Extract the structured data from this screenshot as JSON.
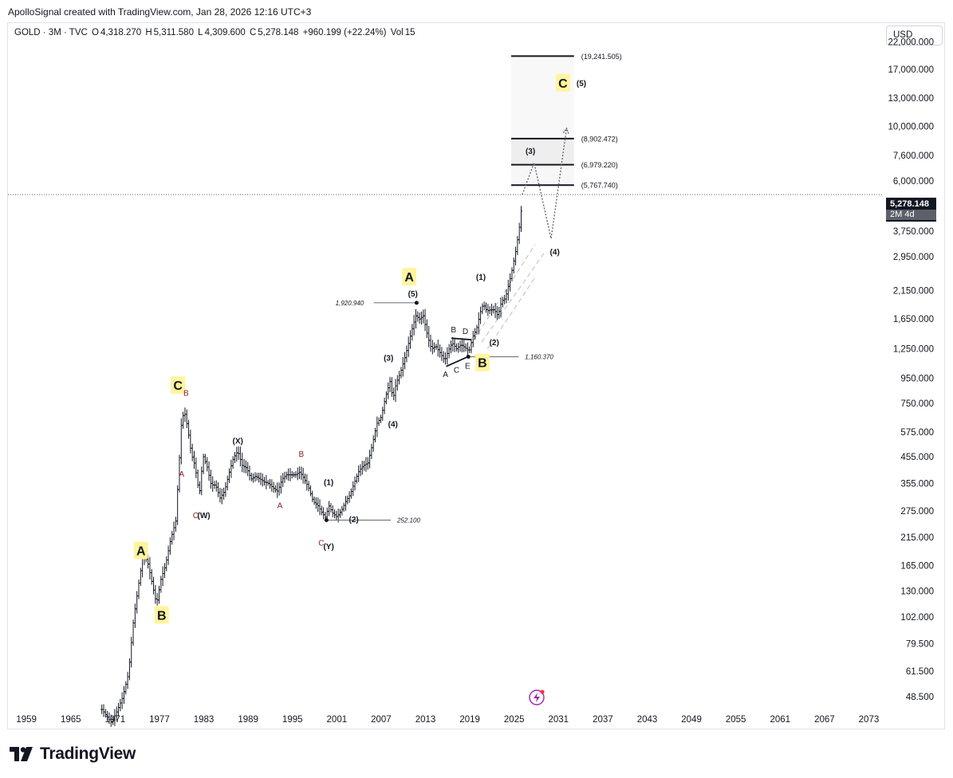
{
  "header": {
    "attribution": "ApolloSignal created with TradingView.com, Jan 28, 2026 12:16 UTC+3"
  },
  "legend": {
    "symbol": "GOLD · 3M · TVC",
    "open_label": "O",
    "open": "4,318.270",
    "high_label": "H",
    "high": "5,311.580",
    "low_label": "L",
    "low": "4,309.600",
    "close_label": "C",
    "close": "5,278.148",
    "change": "+960.199 (+22.24%)",
    "volume_label": "Vol",
    "volume": "15"
  },
  "currency_button": "USD",
  "last_price": {
    "value": "5,278.148",
    "countdown": "2M 4d"
  },
  "footer": {
    "brand": "TradingView"
  },
  "colors": {
    "candle": "#131722",
    "wave_label_bg": "#fff59d",
    "sub_label": "#8b1a1a",
    "grid_text": "#131722",
    "target_box": "#f5f5f5"
  },
  "chart_data": {
    "type": "bar",
    "title": "",
    "symbol": "GOLD",
    "interval": "3M",
    "y_scale": "log",
    "ylim": [
      43,
      26000
    ],
    "xlim": [
      1956.5,
      2075
    ],
    "x_ticks": [
      "1959",
      "1965",
      "1971",
      "1977",
      "1983",
      "1989",
      "1995",
      "2001",
      "2007",
      "2013",
      "2019",
      "2025",
      "2031",
      "2037",
      "2043",
      "2049",
      "2055",
      "2061",
      "2067",
      "2073"
    ],
    "y_ticks": [
      "22,000.000",
      "17,000.000",
      "13,000.000",
      "10,000.000",
      "7,600.000",
      "6,000.000",
      "3,750.000",
      "2,950.000",
      "2,150.000",
      "1,650.000",
      "1,250.000",
      "950.000",
      "750.000",
      "575.000",
      "455.000",
      "355.000",
      "275.000",
      "215.000",
      "165.000",
      "130.000",
      "102.000",
      "79.500",
      "61.500",
      "48.500"
    ],
    "price_path": [
      [
        1969.2,
        43
      ],
      [
        1970.5,
        38
      ],
      [
        1971.2,
        42
      ],
      [
        1972.0,
        48
      ],
      [
        1972.8,
        60
      ],
      [
        1973.5,
        100
      ],
      [
        1974.2,
        140
      ],
      [
        1974.8,
        185
      ],
      [
        1975.4,
        170
      ],
      [
        1976.0,
        140
      ],
      [
        1976.6,
        115
      ],
      [
        1977.2,
        145
      ],
      [
        1977.8,
        165
      ],
      [
        1978.5,
        210
      ],
      [
        1979.2,
        250
      ],
      [
        1979.6,
        400
      ],
      [
        1980.0,
        650
      ],
      [
        1980.4,
        690
      ],
      [
        1980.8,
        600
      ],
      [
        1981.3,
        470
      ],
      [
        1981.8,
        420
      ],
      [
        1982.4,
        320
      ],
      [
        1982.9,
        460
      ],
      [
        1983.4,
        420
      ],
      [
        1984.0,
        350
      ],
      [
        1984.6,
        350
      ],
      [
        1985.2,
        310
      ],
      [
        1985.8,
        330
      ],
      [
        1986.4,
        390
      ],
      [
        1987.0,
        450
      ],
      [
        1987.6,
        480
      ],
      [
        1988.2,
        420
      ],
      [
        1988.8,
        410
      ],
      [
        1989.4,
        370
      ],
      [
        1990.0,
        380
      ],
      [
        1990.6,
        370
      ],
      [
        1991.2,
        360
      ],
      [
        1991.8,
        355
      ],
      [
        1992.4,
        340
      ],
      [
        1993.0,
        330
      ],
      [
        1993.6,
        370
      ],
      [
        1994.2,
        385
      ],
      [
        1994.8,
        385
      ],
      [
        1995.4,
        385
      ],
      [
        1996.0,
        395
      ],
      [
        1996.6,
        370
      ],
      [
        1997.2,
        340
      ],
      [
        1997.8,
        300
      ],
      [
        1998.4,
        290
      ],
      [
        1999.0,
        270
      ],
      [
        1999.5,
        258
      ],
      [
        1999.9,
        290
      ],
      [
        2000.4,
        270
      ],
      [
        2001.0,
        260
      ],
      [
        2001.6,
        275
      ],
      [
        2002.2,
        300
      ],
      [
        2002.8,
        320
      ],
      [
        2003.4,
        360
      ],
      [
        2004.0,
        400
      ],
      [
        2004.6,
        420
      ],
      [
        2005.2,
        430
      ],
      [
        2005.8,
        510
      ],
      [
        2006.4,
        620
      ],
      [
        2007.0,
        660
      ],
      [
        2007.6,
        800
      ],
      [
        2008.2,
        920
      ],
      [
        2008.6,
        780
      ],
      [
        2009.0,
        900
      ],
      [
        2009.6,
        1000
      ],
      [
        2010.2,
        1150
      ],
      [
        2010.8,
        1350
      ],
      [
        2011.3,
        1550
      ],
      [
        2011.7,
        1700
      ],
      [
        2012.2,
        1650
      ],
      [
        2012.7,
        1700
      ],
      [
        2013.3,
        1400
      ],
      [
        2013.8,
        1250
      ],
      [
        2014.4,
        1280
      ],
      [
        2015.0,
        1200
      ],
      [
        2015.6,
        1120
      ],
      [
        2016.1,
        1230
      ],
      [
        2016.6,
        1320
      ],
      [
        2017.2,
        1250
      ],
      [
        2017.8,
        1300
      ],
      [
        2018.4,
        1260
      ],
      [
        2018.9,
        1220
      ],
      [
        2019.4,
        1400
      ],
      [
        2019.9,
        1500
      ],
      [
        2020.4,
        1750
      ],
      [
        2020.8,
        1900
      ],
      [
        2021.3,
        1780
      ],
      [
        2021.8,
        1800
      ],
      [
        2022.3,
        1800
      ],
      [
        2022.8,
        1700
      ],
      [
        2023.3,
        1950
      ],
      [
        2023.8,
        2000
      ],
      [
        2024.3,
        2300
      ],
      [
        2024.7,
        2600
      ],
      [
        2025.2,
        3100
      ],
      [
        2025.6,
        3700
      ],
      [
        2025.9,
        4300
      ],
      [
        2026.1,
        5278
      ]
    ],
    "horizontal_levels": [
      {
        "value": 19241.505,
        "label": "(19,241.505)"
      },
      {
        "value": 8902.472,
        "label": "(8,902.472)"
      },
      {
        "value": 6979.22,
        "label": "(6,979.220)"
      },
      {
        "value": 5767.74,
        "label": "(5,767.740)"
      }
    ],
    "price_lines": [
      {
        "value": 1920.94,
        "label": "1,920.940",
        "x_from": 2006.0,
        "x_to": 2011.8
      },
      {
        "value": 1160.37,
        "label": "1,160.370",
        "x_from": 2018.8,
        "x_to": 2025.6
      },
      {
        "value": 252.1,
        "label": "252.100",
        "x_from": 1999.6,
        "x_to": 2008.3
      }
    ],
    "projection": [
      [
        2026.1,
        5278
      ],
      [
        2027.7,
        7100
      ],
      [
        2030.0,
        3500
      ],
      [
        2032.1,
        9800
      ]
    ],
    "major_waves": [
      {
        "label": "A",
        "x": 1974.5,
        "y": 190
      },
      {
        "label": "B",
        "x": 1977.3,
        "y": 104
      },
      {
        "label": "C",
        "x": 1979.5,
        "y": 890
      },
      {
        "label": "A",
        "x": 2010.8,
        "y": 2450
      },
      {
        "label": "B",
        "x": 2020.7,
        "y": 1100
      },
      {
        "label": "C",
        "x": 2031.6,
        "y": 15000
      }
    ],
    "minor_waves": [
      {
        "label": "(5)",
        "x": 2011.3,
        "y": 2100
      },
      {
        "label": "(3)",
        "x": 2008.0,
        "y": 1150
      },
      {
        "label": "(4)",
        "x": 2008.6,
        "y": 620
      },
      {
        "label": "(1)",
        "x": 1999.9,
        "y": 360
      },
      {
        "label": "(2)",
        "x": 2003.3,
        "y": 255
      },
      {
        "label": "(X)",
        "x": 1987.6,
        "y": 530
      },
      {
        "label": "(W)",
        "x": 1983.0,
        "y": 265
      },
      {
        "label": "(Y)",
        "x": 1999.9,
        "y": 198
      },
      {
        "label": "(1)",
        "x": 2020.5,
        "y": 2450
      },
      {
        "label": "(2)",
        "x": 2022.3,
        "y": 1330
      },
      {
        "label": "(3)",
        "x": 2027.2,
        "y": 7950
      },
      {
        "label": "(4)",
        "x": 2030.5,
        "y": 3100
      },
      {
        "label": "(5)",
        "x": 2034.1,
        "y": 15000
      }
    ],
    "sub_waves_red": [
      {
        "label": "B",
        "x": 1980.6,
        "y": 830
      },
      {
        "label": "A",
        "x": 1980.0,
        "y": 390
      },
      {
        "label": "C",
        "x": 1981.9,
        "y": 265
      },
      {
        "label": "B",
        "x": 1996.2,
        "y": 470
      },
      {
        "label": "A",
        "x": 1993.3,
        "y": 290
      },
      {
        "label": "C",
        "x": 1998.9,
        "y": 205
      }
    ],
    "triangle_waves": [
      {
        "label": "B",
        "x": 2016.8,
        "y": 1500
      },
      {
        "label": "D",
        "x": 2018.4,
        "y": 1480
      },
      {
        "label": "A",
        "x": 2015.7,
        "y": 990
      },
      {
        "label": "C",
        "x": 2017.2,
        "y": 1030
      },
      {
        "label": "E",
        "x": 2018.7,
        "y": 1070
      }
    ]
  }
}
